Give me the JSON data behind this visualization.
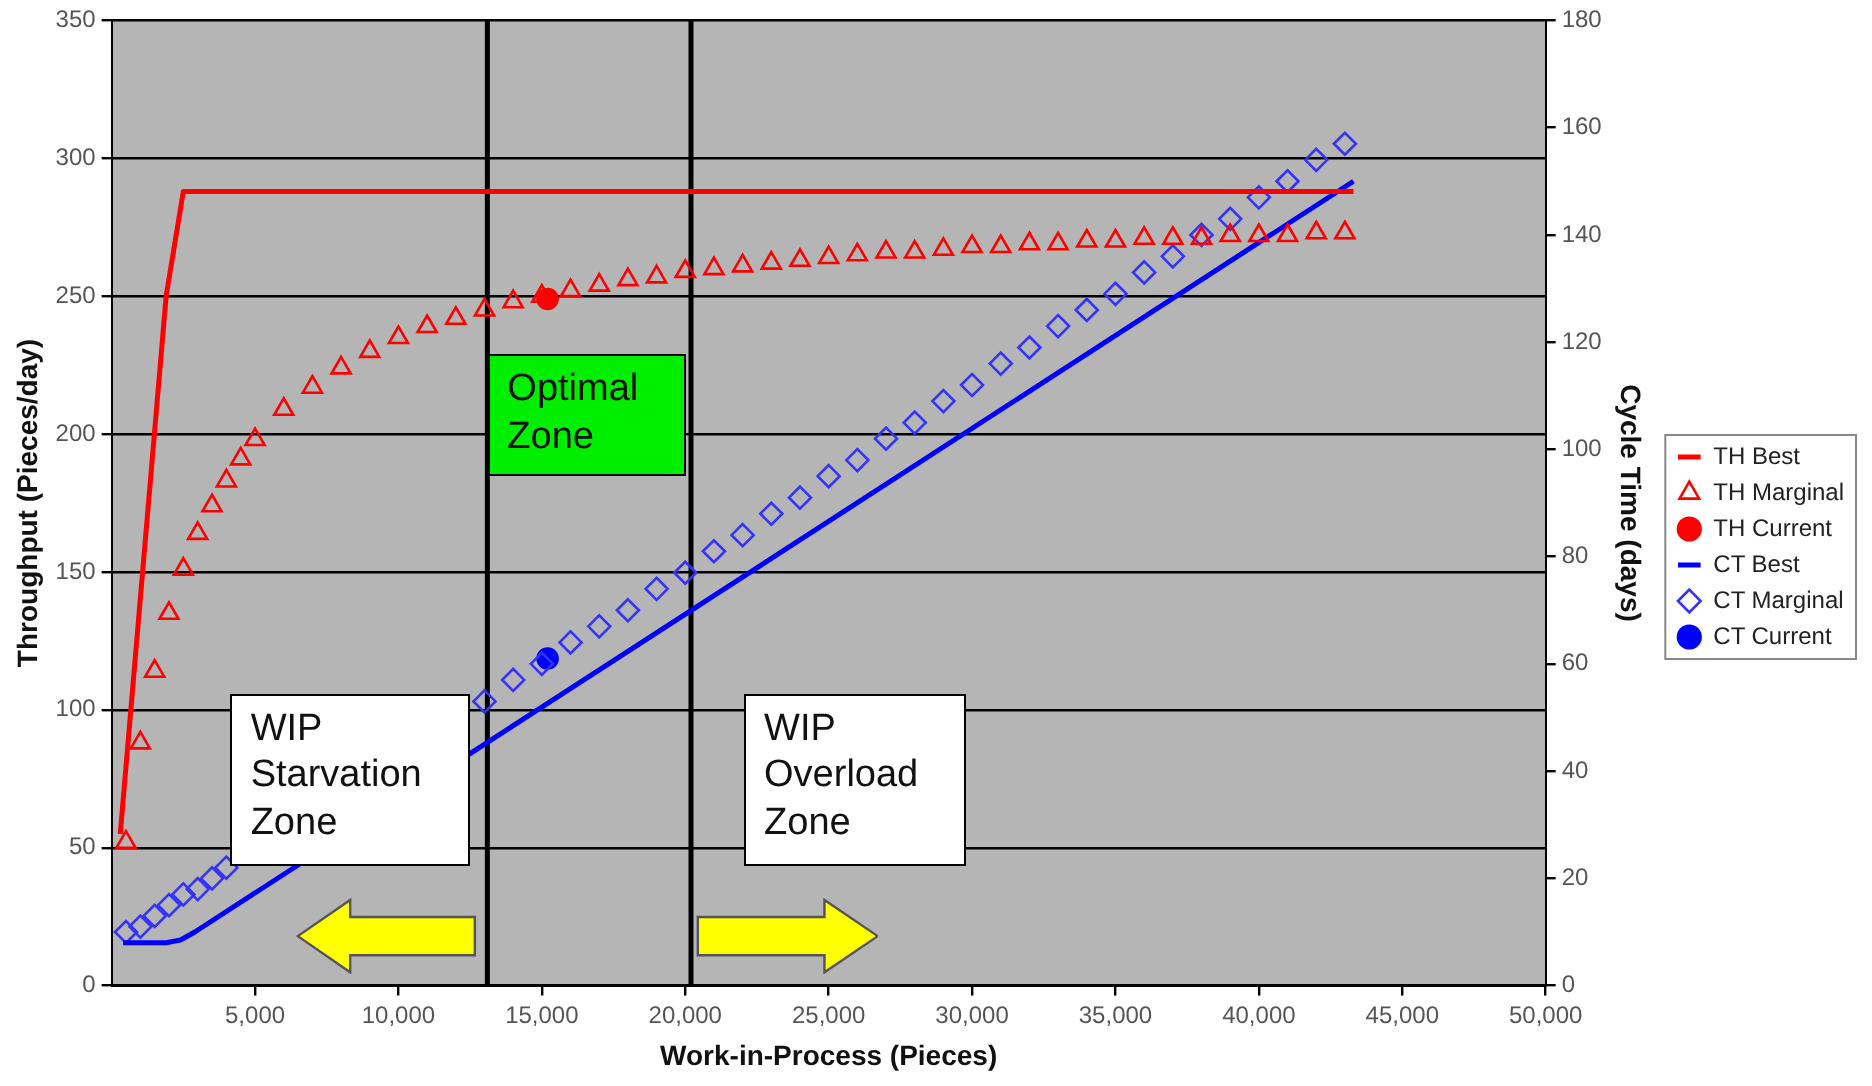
{
  "chart_data": {
    "type": "line",
    "xlabel": "Work-in-Process (Pieces)",
    "ylabel": "Throughput (Pieces/day)",
    "y2label": "Cycle Time (days)",
    "xlim": [
      0,
      50000
    ],
    "xticks": [
      {
        "value": 5000,
        "label": "5,000"
      },
      {
        "value": 10000,
        "label": "10,000"
      },
      {
        "value": 15000,
        "label": "15,000"
      },
      {
        "value": 20000,
        "label": "20,000"
      },
      {
        "value": 25000,
        "label": "25,000"
      },
      {
        "value": 30000,
        "label": "30,000"
      },
      {
        "value": 35000,
        "label": "35,000"
      },
      {
        "value": 40000,
        "label": "40,000"
      },
      {
        "value": 45000,
        "label": "45,000"
      },
      {
        "value": 50000,
        "label": "50,000"
      }
    ],
    "ylim": [
      0,
      350
    ],
    "yticks": [
      0,
      50,
      100,
      150,
      200,
      250,
      300,
      350
    ],
    "y2lim": [
      0,
      180
    ],
    "y2ticks": [
      0,
      20,
      40,
      60,
      80,
      100,
      120,
      140,
      160,
      180
    ],
    "grid": "y",
    "legend": "right",
    "series": [
      {
        "name": "TH Best",
        "type": "line",
        "marker": "none",
        "color": "#ff0000",
        "x": [
          300,
          1900,
          2500,
          43300
        ],
        "values": [
          55,
          250,
          288,
          288
        ]
      },
      {
        "name": "TH Marginal",
        "type": "scatter",
        "marker": "triangle",
        "color": "#ff0000",
        "x": [
          500,
          1000,
          1500,
          2000,
          2500,
          3000,
          3500,
          4000,
          4500,
          5000,
          6000,
          7000,
          8000,
          9000,
          10000,
          11000,
          12000,
          13000,
          14000,
          15000,
          16000,
          17000,
          18000,
          19000,
          20000,
          21000,
          22000,
          23000,
          24000,
          25000,
          26000,
          27000,
          28000,
          29000,
          30000,
          31000,
          32000,
          33000,
          34000,
          35000,
          36000,
          37000,
          38000,
          39000,
          40000,
          41000,
          42000,
          43000
        ],
        "values": [
          52,
          88,
          114,
          135,
          151,
          164,
          174,
          183,
          191,
          198,
          209,
          217,
          224,
          230,
          235,
          239,
          242,
          245,
          248,
          250,
          252,
          254,
          256,
          257,
          259,
          260,
          261,
          262,
          263,
          264,
          265,
          266,
          266,
          267,
          268,
          268,
          269,
          269,
          270,
          270,
          271,
          271,
          271,
          272,
          272,
          272,
          273,
          273
        ]
      },
      {
        "name": "TH Current",
        "type": "scatter",
        "marker": "circle",
        "color": "#ff0000",
        "x": [
          15200
        ],
        "values": [
          249
        ]
      },
      {
        "name": "CT Best",
        "type": "line",
        "marker": "none",
        "color": "#0000ff",
        "axis": "y2",
        "x": [
          400,
          1900,
          2400,
          2900,
          43300
        ],
        "values": [
          8,
          8,
          8.5,
          10,
          150
        ]
      },
      {
        "name": "CT Marginal",
        "type": "scatter",
        "marker": "diamond",
        "color": "#3333ff",
        "axis": "y2",
        "x": [
          500,
          1000,
          1500,
          2000,
          2500,
          3000,
          3500,
          4000,
          4500,
          5000,
          6000,
          7000,
          8000,
          9000,
          10000,
          11000,
          12000,
          13000,
          14000,
          15000,
          16000,
          17000,
          18000,
          19000,
          20000,
          21000,
          22000,
          23000,
          24000,
          25000,
          26000,
          27000,
          28000,
          29000,
          30000,
          31000,
          32000,
          33000,
          34000,
          35000,
          36000,
          37000,
          38000,
          39000,
          40000,
          41000,
          42000,
          43000
        ],
        "values": [
          10,
          11,
          13,
          15,
          17,
          18,
          20,
          22,
          null,
          null,
          null,
          null,
          null,
          null,
          null,
          null,
          null,
          53,
          57,
          60,
          64,
          67,
          70,
          74,
          77,
          81,
          84,
          88,
          91,
          95,
          98,
          102,
          105,
          109,
          112,
          116,
          119,
          123,
          126,
          129,
          133,
          136,
          140,
          143,
          147,
          150,
          154,
          157
        ]
      },
      {
        "name": "CT Current",
        "type": "scatter",
        "marker": "circle",
        "color": "#0000ff",
        "axis": "y2",
        "x": [
          15200
        ],
        "values": [
          61
        ]
      }
    ],
    "ref_lines": [
      {
        "axis": "x",
        "value": 13100,
        "color": "#000000"
      },
      {
        "axis": "x",
        "value": 20200,
        "color": "#000000"
      }
    ],
    "annotations": [
      "Optimal Zone",
      "WIP Starvation Zone",
      "WIP Overload Zone"
    ]
  }
}
